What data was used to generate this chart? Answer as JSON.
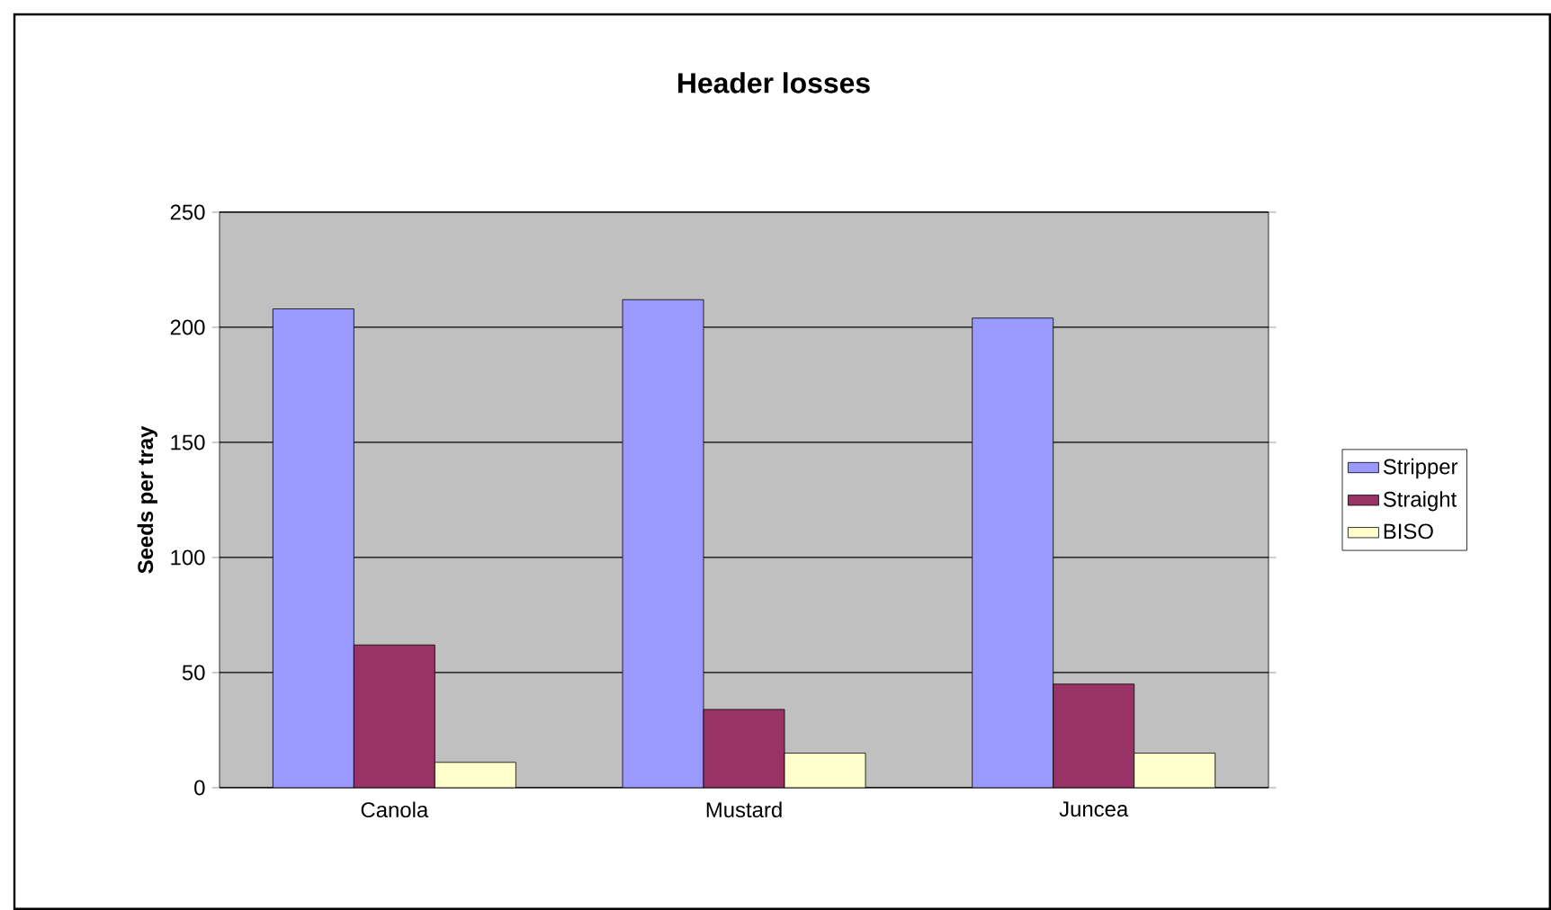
{
  "chart_data": {
    "type": "bar",
    "title": "Header losses",
    "ylabel": "Seeds per tray",
    "categories": [
      "Canola",
      "Mustard",
      "Juncea"
    ],
    "series": [
      {
        "name": "Stripper",
        "color": "#9999ff",
        "values": [
          208,
          212,
          204
        ]
      },
      {
        "name": "Straight",
        "color": "#993366",
        "values": [
          62,
          34,
          45
        ]
      },
      {
        "name": "BISO",
        "color": "#ffffcc",
        "values": [
          11,
          15,
          15
        ]
      }
    ],
    "ylim": [
      0,
      250
    ],
    "yticks": [
      0,
      50,
      100,
      150,
      200,
      250
    ],
    "grid": "y",
    "legend": "right"
  }
}
